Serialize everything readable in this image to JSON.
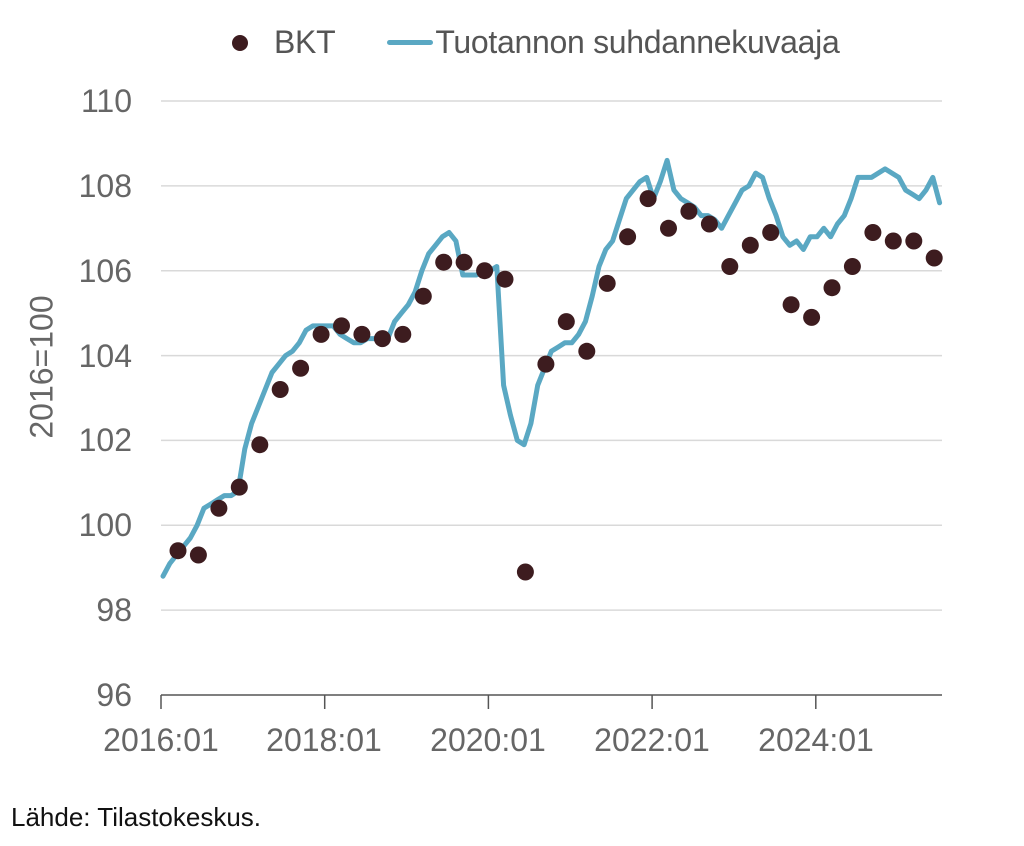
{
  "legend": {
    "series_points_label": "BKT",
    "series_line_label": "Tuotannon suhdannekuvaaja"
  },
  "axes": {
    "ylabel": "2016=100",
    "yticks": [
      "110",
      "108",
      "106",
      "104",
      "102",
      "100",
      "98",
      "96"
    ],
    "xticks": [
      "2016:01",
      "2018:01",
      "2020:01",
      "2022:01",
      "2024:01"
    ]
  },
  "source": "Lähde: Tilastokeskus.",
  "colors": {
    "points": "#3d1c1f",
    "line": "#5aa8c3",
    "grid": "#d9d9d9",
    "axis": "#555555"
  },
  "chart_data": {
    "type": "line",
    "title": "",
    "xlabel": "",
    "ylabel": "2016=100",
    "ylim": [
      96,
      110
    ],
    "grid": true,
    "legend_position": "top",
    "x_ticks": [
      "2016:01",
      "2018:01",
      "2020:01",
      "2022:01",
      "2024:01"
    ],
    "series": [
      {
        "name": "BKT",
        "kind": "scatter",
        "frequency": "quarterly",
        "x": [
          "2016Q1",
          "2016Q2",
          "2016Q3",
          "2016Q4",
          "2017Q1",
          "2017Q2",
          "2017Q3",
          "2017Q4",
          "2018Q1",
          "2018Q2",
          "2018Q3",
          "2018Q4",
          "2019Q1",
          "2019Q2",
          "2019Q3",
          "2019Q4",
          "2020Q1",
          "2020Q2",
          "2020Q3",
          "2020Q4",
          "2021Q1",
          "2021Q2",
          "2021Q3",
          "2021Q4",
          "2022Q1",
          "2022Q2",
          "2022Q3",
          "2022Q4",
          "2023Q1",
          "2023Q2",
          "2023Q3",
          "2023Q4",
          "2024Q1",
          "2024Q2",
          "2024Q3",
          "2024Q4",
          "2025Q1",
          "2025Q2"
        ],
        "values": [
          99.4,
          99.3,
          100.4,
          100.9,
          101.9,
          103.2,
          103.7,
          104.5,
          104.7,
          104.5,
          104.4,
          104.5,
          105.4,
          106.2,
          106.2,
          106.0,
          105.8,
          98.9,
          103.8,
          104.8,
          104.1,
          105.7,
          106.8,
          107.7,
          107.0,
          107.4,
          107.1,
          106.1,
          106.6,
          106.9,
          105.2,
          104.9,
          105.6,
          106.1,
          106.9,
          106.7,
          106.7,
          106.3
        ]
      },
      {
        "name": "Tuotannon suhdannekuvaaja",
        "kind": "line",
        "frequency": "monthly",
        "start": "2016:01",
        "values": [
          98.8,
          99.1,
          99.3,
          99.5,
          99.7,
          100.0,
          100.4,
          100.5,
          100.6,
          100.7,
          100.7,
          100.8,
          101.8,
          102.4,
          102.8,
          103.2,
          103.6,
          103.8,
          104.0,
          104.1,
          104.3,
          104.6,
          104.7,
          104.7,
          104.7,
          104.7,
          104.5,
          104.4,
          104.3,
          104.3,
          104.4,
          104.4,
          104.4,
          104.4,
          104.8,
          105.0,
          105.2,
          105.5,
          106.0,
          106.4,
          106.6,
          106.8,
          106.9,
          106.7,
          105.9,
          105.9,
          105.9,
          106.0,
          106.0,
          106.1,
          103.3,
          102.6,
          102.0,
          101.9,
          102.4,
          103.3,
          103.7,
          104.1,
          104.2,
          104.3,
          104.3,
          104.5,
          104.8,
          105.4,
          106.1,
          106.5,
          106.7,
          107.2,
          107.7,
          107.9,
          108.1,
          108.2,
          107.7,
          108.1,
          108.6,
          107.9,
          107.7,
          107.6,
          107.5,
          107.3,
          107.3,
          107.2,
          107.0,
          107.3,
          107.6,
          107.9,
          108.0,
          108.3,
          108.2,
          107.7,
          107.3,
          106.8,
          106.6,
          106.7,
          106.5,
          106.8,
          106.8,
          107.0,
          106.8,
          107.1,
          107.3,
          107.7,
          108.2,
          108.2,
          108.2,
          108.3,
          108.4,
          108.3,
          108.2,
          107.9,
          107.8,
          107.7,
          107.9,
          108.2,
          107.6
        ]
      }
    ]
  }
}
